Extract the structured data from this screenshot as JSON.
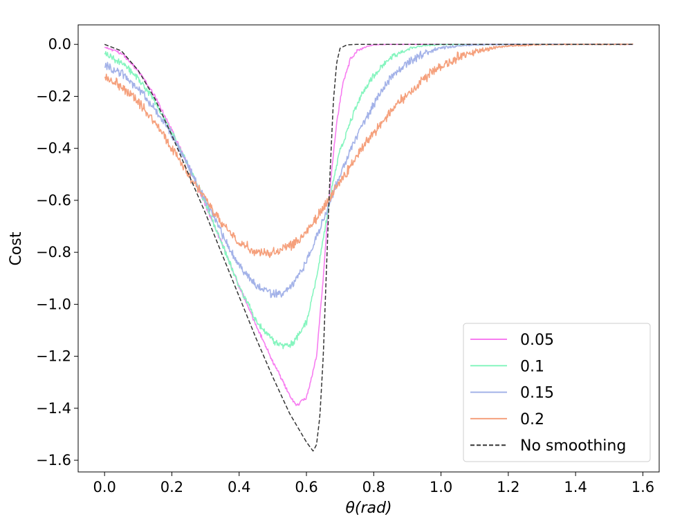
{
  "chart_data": {
    "type": "line",
    "title": "",
    "xlabel": "θ(rad)",
    "ylabel": "Cost",
    "xlim": [
      -0.0785,
      1.6485
    ],
    "ylim": [
      -1.645,
      0.075
    ],
    "xticks": [
      0.0,
      0.2,
      0.4,
      0.6,
      0.8,
      1.0,
      1.2,
      1.4,
      1.6
    ],
    "xtick_labels": [
      "0.0",
      "0.2",
      "0.4",
      "0.6",
      "0.8",
      "1.0",
      "1.2",
      "1.4",
      "1.6"
    ],
    "yticks": [
      0.0,
      -0.2,
      -0.4,
      -0.6,
      -0.8,
      -1.0,
      -1.2,
      -1.4,
      -1.6
    ],
    "ytick_labels": [
      "0.0",
      "−0.2",
      "−0.4",
      "−0.6",
      "−0.8",
      "−1.0",
      "−1.2",
      "−1.4",
      "−1.6"
    ],
    "grid": false,
    "legend_position": "bottom-right",
    "series": [
      {
        "name": "0.05",
        "color": "#f77cf0",
        "style": "solid",
        "noise": 0.006,
        "x": [
          0.0,
          0.05,
          0.1,
          0.15,
          0.2,
          0.25,
          0.3,
          0.35,
          0.4,
          0.45,
          0.5,
          0.55,
          0.57,
          0.6,
          0.63,
          0.65,
          0.67,
          0.69,
          0.71,
          0.73,
          0.75,
          0.78,
          0.8,
          0.85,
          1.0,
          1.2,
          1.4,
          1.571
        ],
        "y": [
          -0.01,
          -0.035,
          -0.1,
          -0.2,
          -0.33,
          -0.47,
          -0.62,
          -0.77,
          -0.93,
          -1.08,
          -1.22,
          -1.35,
          -1.39,
          -1.36,
          -1.2,
          -0.9,
          -0.55,
          -0.3,
          -0.14,
          -0.06,
          -0.025,
          -0.008,
          -0.002,
          0.0,
          0.0,
          0.0,
          0.0,
          0.0
        ]
      },
      {
        "name": "0.1",
        "color": "#86f5bf",
        "style": "solid",
        "noise": 0.01,
        "x": [
          0.0,
          0.05,
          0.1,
          0.15,
          0.2,
          0.25,
          0.3,
          0.35,
          0.4,
          0.45,
          0.5,
          0.53,
          0.56,
          0.6,
          0.63,
          0.66,
          0.68,
          0.7,
          0.73,
          0.76,
          0.8,
          0.85,
          0.9,
          0.95,
          1.0,
          1.2,
          1.4,
          1.571
        ],
        "y": [
          -0.035,
          -0.07,
          -0.13,
          -0.22,
          -0.34,
          -0.47,
          -0.61,
          -0.77,
          -0.93,
          -1.06,
          -1.14,
          -1.16,
          -1.15,
          -1.07,
          -0.9,
          -0.67,
          -0.52,
          -0.41,
          -0.3,
          -0.2,
          -0.12,
          -0.05,
          -0.018,
          -0.005,
          -0.001,
          0.0,
          0.0,
          0.0
        ]
      },
      {
        "name": "0.15",
        "color": "#a3b2e8",
        "style": "solid",
        "noise": 0.013,
        "x": [
          0.0,
          0.05,
          0.1,
          0.15,
          0.2,
          0.25,
          0.3,
          0.35,
          0.4,
          0.45,
          0.5,
          0.53,
          0.55,
          0.6,
          0.63,
          0.66,
          0.7,
          0.75,
          0.8,
          0.85,
          0.9,
          0.95,
          1.0,
          1.05,
          1.1,
          1.2,
          1.4,
          1.571
        ],
        "y": [
          -0.08,
          -0.11,
          -0.17,
          -0.25,
          -0.35,
          -0.47,
          -0.6,
          -0.73,
          -0.85,
          -0.93,
          -0.96,
          -0.96,
          -0.94,
          -0.84,
          -0.74,
          -0.64,
          -0.5,
          -0.35,
          -0.23,
          -0.13,
          -0.07,
          -0.035,
          -0.015,
          -0.006,
          -0.002,
          0.0,
          0.0,
          0.0
        ]
      },
      {
        "name": "0.2",
        "color": "#f5a07c",
        "style": "solid",
        "noise": 0.015,
        "x": [
          0.0,
          0.05,
          0.1,
          0.15,
          0.2,
          0.25,
          0.3,
          0.35,
          0.4,
          0.45,
          0.5,
          0.55,
          0.6,
          0.65,
          0.7,
          0.75,
          0.8,
          0.85,
          0.9,
          0.95,
          1.0,
          1.05,
          1.1,
          1.15,
          1.2,
          1.3,
          1.4,
          1.571
        ],
        "y": [
          -0.125,
          -0.16,
          -0.22,
          -0.3,
          -0.4,
          -0.5,
          -0.6,
          -0.69,
          -0.76,
          -0.8,
          -0.8,
          -0.78,
          -0.72,
          -0.63,
          -0.53,
          -0.43,
          -0.34,
          -0.26,
          -0.19,
          -0.13,
          -0.085,
          -0.05,
          -0.028,
          -0.014,
          -0.006,
          -0.001,
          0.0,
          0.0
        ]
      },
      {
        "name": "No smoothing",
        "color": "#333333",
        "style": "dashed",
        "noise": 0,
        "x": [
          0.0,
          0.05,
          0.1,
          0.15,
          0.2,
          0.25,
          0.3,
          0.35,
          0.4,
          0.45,
          0.5,
          0.55,
          0.6,
          0.62,
          0.63,
          0.64,
          0.65,
          0.66,
          0.67,
          0.68,
          0.69,
          0.7,
          0.72,
          0.75,
          0.8,
          1.0,
          1.3,
          1.571
        ],
        "y": [
          0.0,
          -0.025,
          -0.1,
          -0.21,
          -0.35,
          -0.5,
          -0.65,
          -0.81,
          -0.97,
          -1.13,
          -1.28,
          -1.42,
          -1.53,
          -1.565,
          -1.54,
          -1.43,
          -1.2,
          -0.85,
          -0.5,
          -0.22,
          -0.07,
          -0.015,
          -0.002,
          0.0,
          0.0,
          0.0,
          0.0,
          0.0
        ]
      }
    ]
  }
}
